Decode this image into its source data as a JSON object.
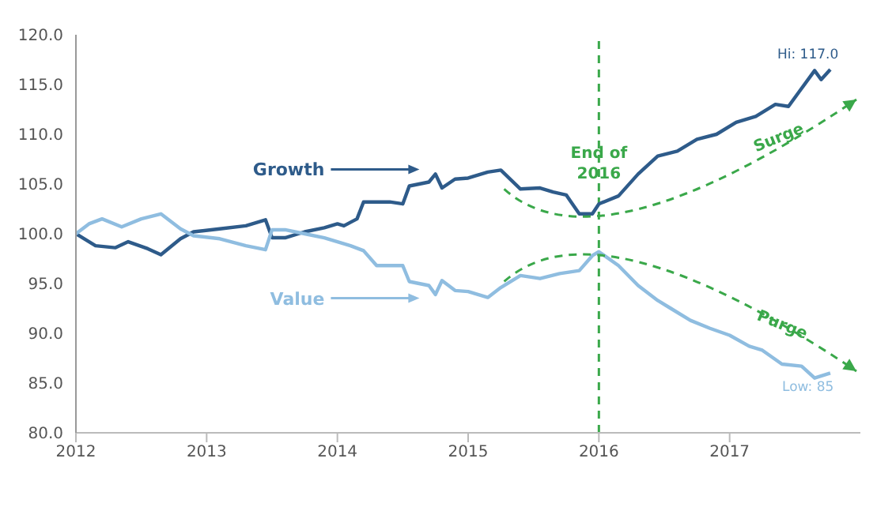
{
  "chart_data": {
    "type": "line",
    "xlim": [
      2012,
      2018
    ],
    "xticks": [
      2012,
      2013,
      2014,
      2015,
      2016,
      2017
    ],
    "ylim": [
      80,
      120
    ],
    "yticks": [
      {
        "value": 80,
        "label": "80.0"
      },
      {
        "value": 85,
        "label": "85.0"
      },
      {
        "value": 90,
        "label": "90.0"
      },
      {
        "value": 95,
        "label": "95.0"
      },
      {
        "value": 100,
        "label": "100.0"
      },
      {
        "value": 105,
        "label": "105.0"
      },
      {
        "value": 110,
        "label": "110.0"
      },
      {
        "value": 115,
        "label": "115.0"
      },
      {
        "value": 120,
        "label": "120.0"
      }
    ],
    "grid": false,
    "legend": "left",
    "marker": "none",
    "series": [
      {
        "name": "Growth",
        "color": "#2e5b8a",
        "x": [
          2012,
          2012.15,
          2012.3,
          2012.4,
          2012.55,
          2012.65,
          2012.8,
          2012.9,
          2013.1,
          2013.3,
          2013.45,
          2013.5,
          2013.6,
          2013.75,
          2013.9,
          2014,
          2014.05,
          2014.15,
          2014.2,
          2014.4,
          2014.5,
          2014.55,
          2014.7,
          2014.75,
          2014.8,
          2014.9,
          2015,
          2015.15,
          2015.25,
          2015.4,
          2015.55,
          2015.65,
          2015.75,
          2015.85,
          2015.95,
          2016,
          2016.15,
          2016.3,
          2016.45,
          2016.6,
          2016.75,
          2016.9,
          2017.05,
          2017.2,
          2017.35,
          2017.45,
          2017.55,
          2017.65,
          2017.7,
          2017.77
        ],
        "values": [
          100,
          98.8,
          98.6,
          99.2,
          98.5,
          97.9,
          99.5,
          100.2,
          100.5,
          100.8,
          101.4,
          99.6,
          99.6,
          100.2,
          100.6,
          101,
          100.8,
          101.5,
          103.2,
          103.2,
          103,
          104.8,
          105.2,
          106,
          104.6,
          105.5,
          105.6,
          106.2,
          106.4,
          104.5,
          104.6,
          104.2,
          103.9,
          102,
          102,
          103,
          103.8,
          106,
          107.8,
          108.3,
          109.5,
          110,
          111.2,
          111.8,
          113,
          112.8,
          114.6,
          116.4,
          115.5,
          116.5
        ]
      },
      {
        "name": "Value",
        "color": "#8fbde0",
        "x": [
          2012,
          2012.1,
          2012.2,
          2012.35,
          2012.5,
          2012.65,
          2012.8,
          2012.9,
          2013.1,
          2013.3,
          2013.45,
          2013.5,
          2013.6,
          2013.75,
          2013.9,
          2014,
          2014.1,
          2014.2,
          2014.3,
          2014.5,
          2014.55,
          2014.7,
          2014.75,
          2014.8,
          2014.9,
          2015,
          2015.15,
          2015.25,
          2015.4,
          2015.55,
          2015.7,
          2015.85,
          2015.95,
          2016,
          2016.15,
          2016.3,
          2016.45,
          2016.55,
          2016.7,
          2016.85,
          2017,
          2017.15,
          2017.25,
          2017.4,
          2017.55,
          2017.65,
          2017.77
        ],
        "values": [
          100,
          101,
          101.5,
          100.7,
          101.5,
          102,
          100.5,
          99.8,
          99.5,
          98.8,
          98.4,
          100.4,
          100.4,
          100,
          99.6,
          99.2,
          98.8,
          98.3,
          96.8,
          96.8,
          95.2,
          94.8,
          93.9,
          95.3,
          94.3,
          94.2,
          93.6,
          94.6,
          95.8,
          95.5,
          96,
          96.3,
          97.8,
          98.2,
          96.8,
          94.8,
          93.3,
          92.5,
          91.3,
          90.5,
          89.8,
          88.7,
          88.3,
          86.9,
          86.7,
          85.5,
          86
        ]
      }
    ],
    "ref_lines": [
      {
        "axis": "x",
        "value": 2016,
        "label": "End of 2016",
        "color": "#3aa84a",
        "line_style": "dashed"
      }
    ],
    "annotations": [
      "Hi: 117.0",
      "Low: 85",
      "Surge",
      "Purge"
    ]
  }
}
